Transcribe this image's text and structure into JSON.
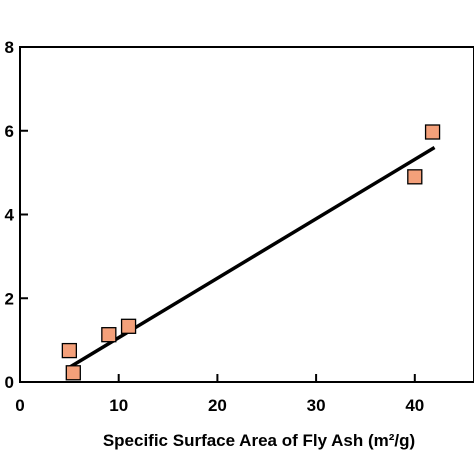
{
  "chart_data": {
    "type": "scatter",
    "title": "",
    "xlabel": "Specific Surface Area of Fly Ash  (m²/g)",
    "ylabel": "",
    "xlim": [
      0,
      46
    ],
    "ylim": [
      0,
      8
    ],
    "x_ticks": [
      0,
      10,
      20,
      30,
      40
    ],
    "x_tick_labels": [
      "0",
      "10",
      "20",
      "30",
      "40"
    ],
    "y_ticks": [
      0,
      2,
      4,
      6,
      8
    ],
    "y_tick_labels": [
      "0",
      "2",
      "4",
      "6",
      "8"
    ],
    "grid": false,
    "legend": "none",
    "series": [
      {
        "marker": "square",
        "color": "#F4A07A",
        "edge_color": "#000000",
        "points": [
          {
            "x": 5.0,
            "y": 0.75
          },
          {
            "x": 5.4,
            "y": 0.22
          },
          {
            "x": 9.0,
            "y": 1.13
          },
          {
            "x": 11.0,
            "y": 1.33
          },
          {
            "x": 40.0,
            "y": 4.9
          },
          {
            "x": 41.8,
            "y": 5.97
          }
        ]
      }
    ],
    "fit_line": {
      "color": "#000000",
      "x": [
        5.0,
        42.0
      ],
      "y": [
        0.35,
        5.6
      ]
    }
  }
}
